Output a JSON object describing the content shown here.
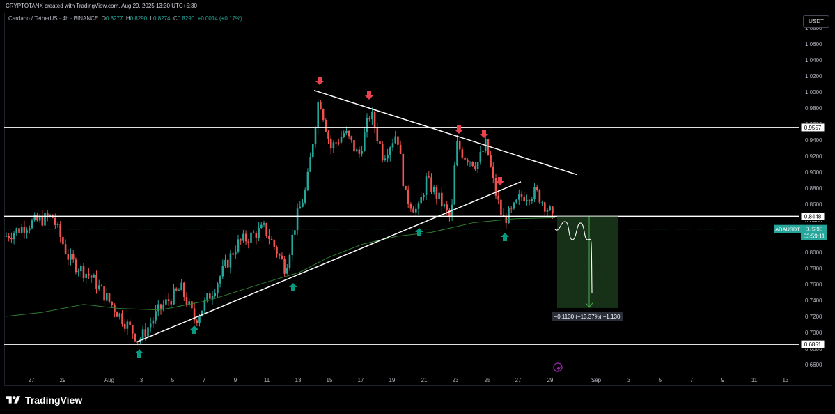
{
  "header": {
    "attribution": "CRYPTOTANX created with TradingView.com, Aug 29, 2025 13:30 UTC+5:30"
  },
  "symbol": {
    "name": "Cardano / TetherUS · 4h · BINANCE",
    "o_label": "O",
    "o_value": "0.8277",
    "h_label": "H",
    "h_value": "0.8290",
    "l_label": "L",
    "l_value": "0.8274",
    "c_label": "C",
    "c_value": "0.8290",
    "change": "+0.0014 (+0.17%)"
  },
  "currency_button": "USDT",
  "price_axis": {
    "ticks": [
      "1.0800",
      "1.0600",
      "1.0400",
      "1.0200",
      "1.0000",
      "0.9800",
      "0.9600",
      "0.9400",
      "0.9200",
      "0.9000",
      "0.8800",
      "0.8600",
      "0.8400",
      "0.8200",
      "0.8000",
      "0.7800",
      "0.7600",
      "0.7400",
      "0.7200",
      "0.7000",
      "0.6800",
      "0.6600"
    ]
  },
  "time_axis": {
    "ticks": [
      "27",
      "29",
      "Aug",
      "3",
      "5",
      "7",
      "9",
      "11",
      "13",
      "15",
      "17",
      "19",
      "21",
      "23",
      "25",
      "27",
      "29",
      "Sep",
      "3",
      "5",
      "7",
      "9",
      "11",
      "13"
    ]
  },
  "levels": [
    {
      "label": "0.9557",
      "price": 0.9557
    },
    {
      "label": "0.8448",
      "price": 0.8448
    },
    {
      "label": "0.6851",
      "price": 0.6851
    }
  ],
  "current_price": {
    "ticker": "ADAUSDT",
    "price": "0.8290",
    "countdown": "03:59:11",
    "color": "#26a69a"
  },
  "measure_label": "−0.1130 (−13.37%) −1,130",
  "colors": {
    "bull": "#26a69a",
    "bear": "#ef5350",
    "ma": "#2e7d32",
    "down_arrow": "#e8434f",
    "up_arrow": "#089981",
    "target_box": "#1b3a1c"
  },
  "footer": {
    "brand": "TradingView"
  }
}
